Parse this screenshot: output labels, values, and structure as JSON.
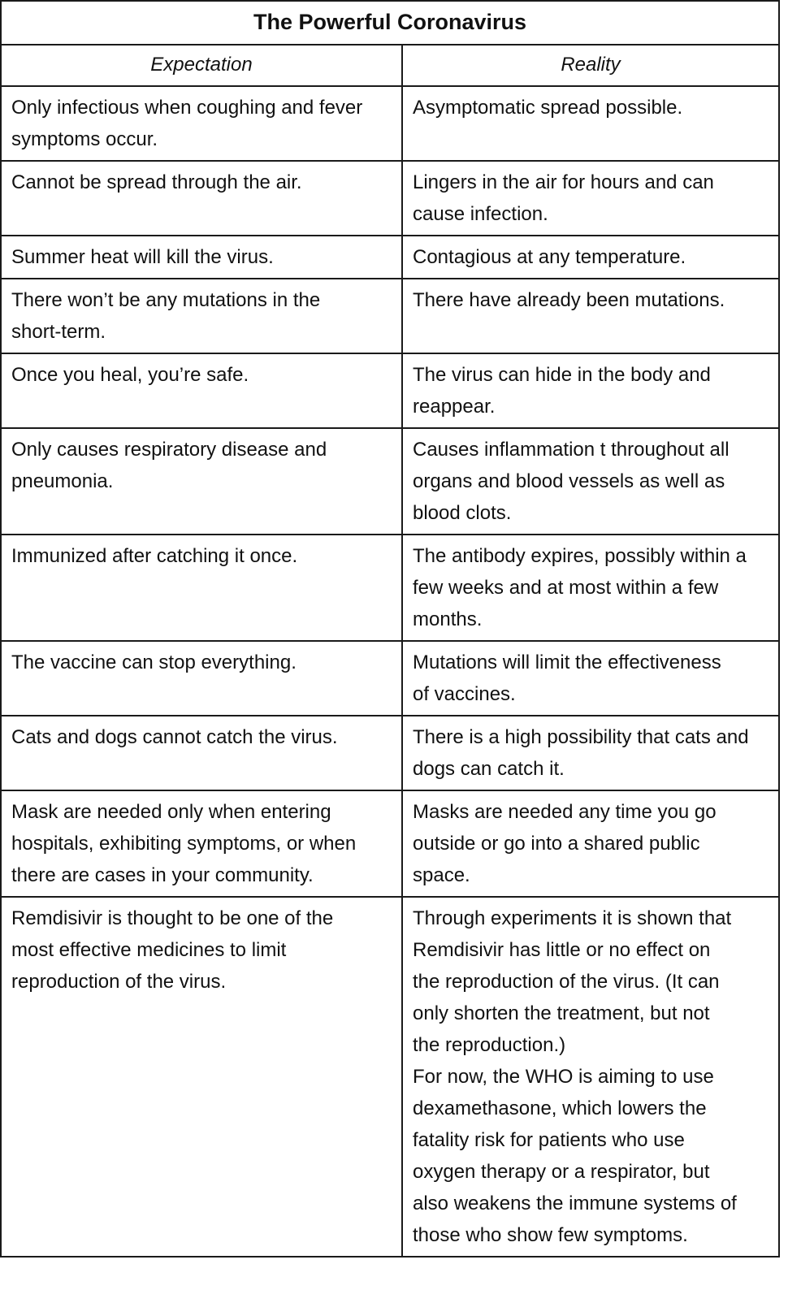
{
  "table": {
    "title": "The Powerful Coronavirus",
    "columns": {
      "expectation": "Expectation",
      "reality": "Reality"
    },
    "rows": [
      {
        "expectation": "Only infectious when coughing and fever\nsymptoms occur.",
        "reality": "Asymptomatic spread possible."
      },
      {
        "expectation": "Cannot be spread through the air.",
        "reality": "Lingers in the air for hours and can\ncause infection."
      },
      {
        "expectation": "Summer heat will kill the virus.",
        "reality": "Contagious at any temperature."
      },
      {
        "expectation": "There won’t be any mutations in the\nshort-term.",
        "reality": "There have already been mutations."
      },
      {
        "expectation": "Once you heal, you’re safe.",
        "reality": "The virus can hide in the body and\nreappear."
      },
      {
        "expectation": "Only causes respiratory disease and\npneumonia.",
        "reality": "Causes inflammation t throughout all\norgans and blood vessels as well as\nblood clots."
      },
      {
        "expectation": "Immunized after catching it once.",
        "reality": "The antibody expires, possibly within a\nfew weeks and at most within a few\nmonths."
      },
      {
        "expectation": "The vaccine can stop everything.",
        "reality": "Mutations will limit the effectiveness\nof vaccines."
      },
      {
        "expectation": "Cats and dogs cannot catch the virus.",
        "reality": "There is a high possibility that cats and\ndogs can catch it."
      },
      {
        "expectation": "Mask are needed only when entering\nhospitals, exhibiting symptoms, or when\nthere are cases in your community.",
        "reality": "Masks are needed any time you go\noutside or go into a shared public\nspace."
      },
      {
        "expectation": "Remdisivir is thought to be one of the\nmost effective medicines to limit\nreproduction of the virus.",
        "reality": "Through experiments it is shown that\nRemdisivir has little or no effect on\nthe reproduction of the virus. (It can\nonly shorten the treatment, but not\nthe reproduction.)\nFor now, the WHO is aiming to use\ndexamethasone, which lowers the\nfatality risk for patients who use\noxygen therapy or a respirator, but\nalso weakens the immune systems of\nthose who show few symptoms."
      }
    ]
  }
}
